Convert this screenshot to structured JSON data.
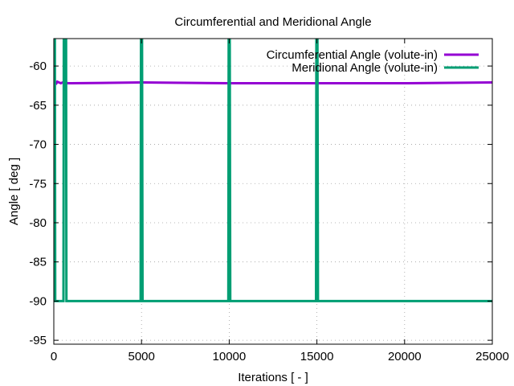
{
  "chart_data": {
    "type": "line",
    "title": "Circumferential and Meridional Angle",
    "xlabel": "Iterations [ - ]",
    "ylabel": "Angle [ deg ]",
    "xlim": [
      0,
      25000
    ],
    "ylim": [
      -95.5,
      -56.5
    ],
    "xticks": [
      0,
      5000,
      10000,
      15000,
      20000,
      25000
    ],
    "yticks": [
      -60,
      -65,
      -70,
      -75,
      -80,
      -85,
      -90,
      -95
    ],
    "grid": true,
    "legend_position": "top-right",
    "series": [
      {
        "name": "Circumferential Angle (volute-in)",
        "color": "#9400d3",
        "x": [
          0,
          30,
          60,
          100,
          150,
          200,
          300,
          400,
          500,
          600,
          700,
          800,
          1000,
          5000,
          10000,
          15000,
          20000,
          25000
        ],
        "y": [
          -62.1,
          -62.2,
          -62.3,
          -62.1,
          -62.2,
          -62.0,
          -62.1,
          -62.2,
          -62.1,
          -62.0,
          -62.1,
          -62.2,
          -62.2,
          -62.1,
          -62.2,
          -62.2,
          -62.2,
          -62.1
        ]
      },
      {
        "name": "Meridional Angle (volute-in)",
        "color": "#009e73",
        "x": [
          0,
          20,
          40,
          60,
          80,
          100,
          130,
          160,
          200,
          550,
          570,
          600,
          650,
          680,
          700,
          720,
          4950,
          4970,
          5000,
          5030,
          5060,
          9950,
          9970,
          10000,
          10030,
          10060,
          14950,
          14970,
          15000,
          15030,
          15060,
          25000
        ],
        "y": [
          -70,
          -56.5,
          -90,
          -56.5,
          -90,
          -90,
          -90,
          -90,
          -90,
          -90,
          -56.5,
          -56.5,
          -56.5,
          -56.5,
          -56.5,
          -90,
          -90,
          -56.5,
          -56.5,
          -56.5,
          -90,
          -90,
          -56.5,
          -56.5,
          -56.5,
          -90,
          -90,
          -56.5,
          -56.5,
          -56.5,
          -90,
          -90
        ]
      }
    ]
  }
}
